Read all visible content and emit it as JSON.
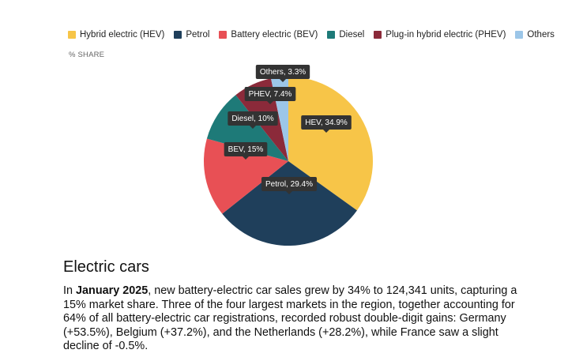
{
  "chart_data": {
    "type": "pie",
    "subtitle": "% SHARE",
    "categories": [
      "Hybrid electric (HEV)",
      "Petrol",
      "Battery electric (BEV)",
      "Diesel",
      "Plug-in hybrid electric (PHEV)",
      "Others"
    ],
    "values": [
      34.9,
      29.4,
      15,
      10,
      7.4,
      3.3
    ],
    "value_labels": [
      "HEV, 34.9%",
      "Petrol, 29.4%",
      "BEV, 15%",
      "Diesel, 10%",
      "PHEV, 7.4%",
      "Others, 3.3%"
    ],
    "colors": [
      "#f7c548",
      "#1f3f5b",
      "#e85055",
      "#1e7a78",
      "#8b2a3a",
      "#9cc6e8"
    ]
  },
  "document": {
    "heading": "Electric cars",
    "paragraph": {
      "lead": "In",
      "bold": "January 2025",
      "text": ", new battery-electric car sales grew by 34% to 124,341 units, capturing a 15% market share. Three of the four largest markets in the region, together accounting for 64% of all battery-electric car registrations, recorded robust double-digit gains: Germany (+53.5%), Belgium (+37.2%), and the Netherlands (+28.2%), while France saw a slight decline of -0.5%."
    }
  }
}
